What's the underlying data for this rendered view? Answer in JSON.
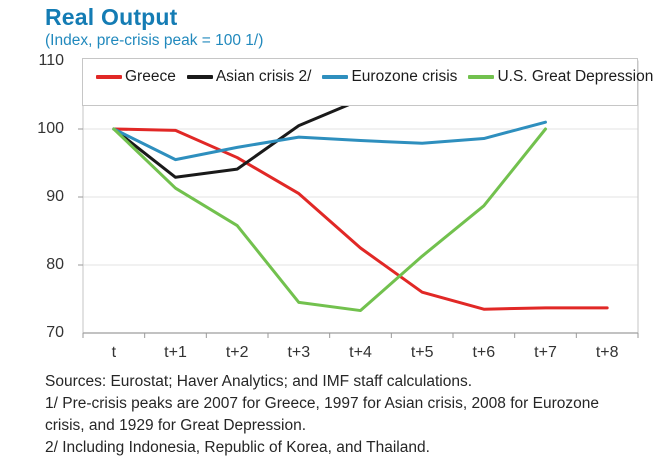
{
  "page": {
    "title": "Real Output",
    "subtitle": "(Index, pre-crisis peak = 100 1/)",
    "title_color": "#147CB4",
    "subtitle_color": "#2189BD"
  },
  "chart_data": {
    "type": "line",
    "title": "Real Output",
    "subtitle": "(Index, pre-crisis peak = 100 1/)",
    "categories": [
      "t",
      "t+1",
      "t+2",
      "t+3",
      "t+4",
      "t+5",
      "t+6",
      "t+7",
      "t+8"
    ],
    "xlabel": "",
    "ylabel": "",
    "ylim": [
      70,
      110
    ],
    "yticks": [
      70,
      80,
      90,
      100,
      110
    ],
    "grid": "horizontal-faint",
    "legend_position": "top",
    "series": [
      {
        "name": "Greece",
        "color": "#E12826",
        "values": [
          100,
          99.8,
          95.8,
          90.5,
          82.5,
          76,
          73.5,
          73.7,
          73.7
        ]
      },
      {
        "name": "Asian crisis 2/",
        "color": "#1A1A1A",
        "values": [
          100,
          92.9,
          94.1,
          100.5,
          104.3
        ]
      },
      {
        "name": "Eurozone crisis",
        "color": "#2E8FBE",
        "values": [
          100,
          95.5,
          97.3,
          98.8,
          98.3,
          97.9,
          98.6,
          101
        ]
      },
      {
        "name": "U.S. Great Depression",
        "color": "#72C14E",
        "values": [
          100,
          91.3,
          85.8,
          74.5,
          73.3,
          81.3,
          88.7,
          100
        ]
      }
    ]
  },
  "footnotes": {
    "lines": [
      "Sources: Eurostat; Haver Analytics; and IMF staff calculations.",
      "1/ Pre-crisis peaks are 2007 for Greece, 1997 for Asian crisis, 2008 for Eurozone",
      "crisis, and 1929 for Great Depression.",
      "2/ Including Indonesia, Republic of Korea, and Thailand."
    ]
  }
}
